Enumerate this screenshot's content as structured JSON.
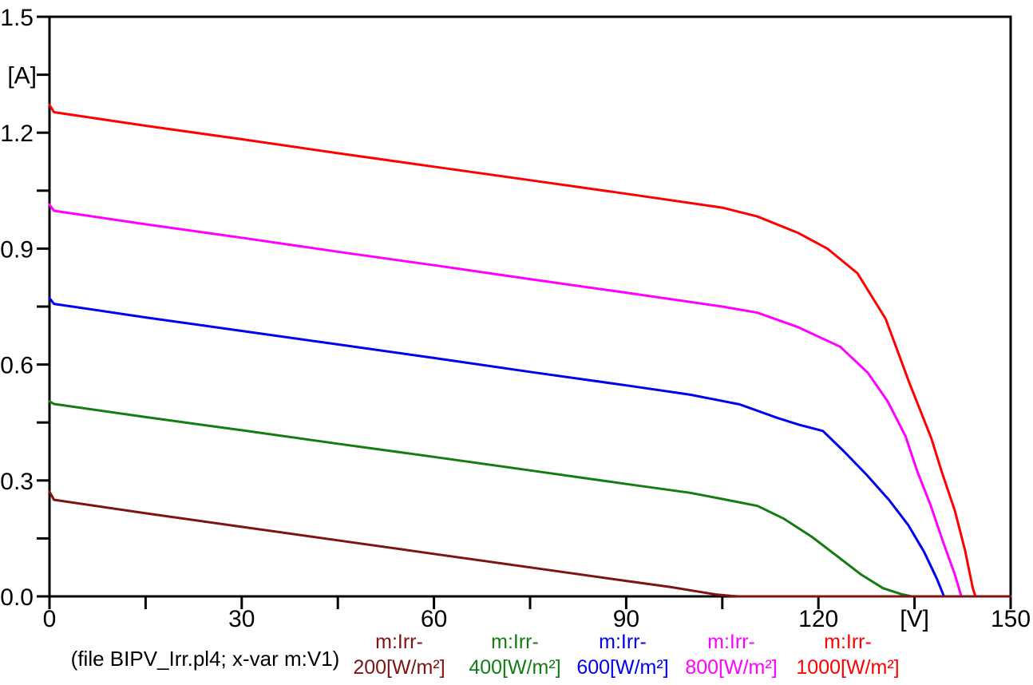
{
  "figure": {
    "background": "#ffffff",
    "caption": "(file BIPV_Irr.pl4; x-var m:V1)"
  },
  "chart_data": {
    "type": "line",
    "title": "",
    "xlabel": "[V]",
    "ylabel": "[A]",
    "xlim": [
      0,
      150
    ],
    "ylim": [
      0,
      1.5
    ],
    "x_major_ticks": [
      0,
      30,
      60,
      90,
      120,
      150
    ],
    "x_minor_step": 15,
    "x_unit_label_position": 135,
    "y_major_ticks": [
      0,
      0.3,
      0.6,
      0.9,
      1.2,
      1.5
    ],
    "y_minor_step": 0.15,
    "y_unit_label_position": 1.35,
    "grid": false,
    "legend_position": "bottom",
    "axis_color": "#000000",
    "series": [
      {
        "name": "m:Irr-200",
        "legend_line1": "m:Irr-",
        "legend_line2": "200[W/m²]",
        "irradiance_w_m2": 200,
        "color": "#7d1414",
        "points": [
          [
            0,
            0.271
          ],
          [
            0.7,
            0.25
          ],
          [
            15,
            0.215
          ],
          [
            30,
            0.18
          ],
          [
            45,
            0.145
          ],
          [
            60,
            0.11
          ],
          [
            75,
            0.075
          ],
          [
            90,
            0.04
          ],
          [
            97,
            0.024
          ],
          [
            101,
            0.013
          ],
          [
            104,
            0.005
          ],
          [
            106.5,
            0.001
          ],
          [
            107.5,
            0
          ],
          [
            150,
            0
          ]
        ]
      },
      {
        "name": "m:Irr-400",
        "legend_line1": "m:Irr-",
        "legend_line2": "400[W/m²]",
        "irradiance_w_m2": 400,
        "color": "#137d13",
        "points": [
          [
            0,
            0.505
          ],
          [
            0.7,
            0.498
          ],
          [
            15,
            0.464
          ],
          [
            30,
            0.43
          ],
          [
            45,
            0.395
          ],
          [
            60,
            0.361
          ],
          [
            75,
            0.326
          ],
          [
            90,
            0.291
          ],
          [
            100,
            0.268
          ],
          [
            105,
            0.252
          ],
          [
            110.5,
            0.234
          ],
          [
            114.6,
            0.201
          ],
          [
            118.9,
            0.155
          ],
          [
            123,
            0.103
          ],
          [
            126.7,
            0.056
          ],
          [
            130.1,
            0.021
          ],
          [
            132.9,
            0.006
          ],
          [
            134.5,
            0
          ],
          [
            150,
            0
          ]
        ]
      },
      {
        "name": "m:Irr-600",
        "legend_line1": "m:Irr-",
        "legend_line2": "600[W/m²]",
        "irradiance_w_m2": 600,
        "color": "#0000ee",
        "points": [
          [
            0,
            0.772
          ],
          [
            0.7,
            0.757
          ],
          [
            15,
            0.722
          ],
          [
            30,
            0.687
          ],
          [
            45,
            0.652
          ],
          [
            60,
            0.617
          ],
          [
            75,
            0.581
          ],
          [
            90,
            0.546
          ],
          [
            100,
            0.522
          ],
          [
            107.7,
            0.497
          ],
          [
            113.6,
            0.462
          ],
          [
            117,
            0.444
          ],
          [
            120.7,
            0.428
          ],
          [
            124,
            0.375
          ],
          [
            127.5,
            0.315
          ],
          [
            131,
            0.25
          ],
          [
            134,
            0.185
          ],
          [
            136.5,
            0.115
          ],
          [
            138.5,
            0.045
          ],
          [
            139.6,
            0
          ],
          [
            150,
            0
          ]
        ]
      },
      {
        "name": "m:Irr-800",
        "legend_line1": "m:Irr-",
        "legend_line2": "800[W/m²]",
        "irradiance_w_m2": 800,
        "color": "#ff00ff",
        "points": [
          [
            0,
            1.014
          ],
          [
            0.7,
            0.998
          ],
          [
            15,
            0.963
          ],
          [
            30,
            0.928
          ],
          [
            45,
            0.892
          ],
          [
            60,
            0.857
          ],
          [
            75,
            0.821
          ],
          [
            90,
            0.786
          ],
          [
            105,
            0.75
          ],
          [
            110.5,
            0.734
          ],
          [
            116.8,
            0.697
          ],
          [
            123.4,
            0.646
          ],
          [
            127.7,
            0.579
          ],
          [
            130.8,
            0.505
          ],
          [
            133.6,
            0.414
          ],
          [
            135.4,
            0.325
          ],
          [
            137.5,
            0.236
          ],
          [
            139.5,
            0.139
          ],
          [
            141.3,
            0.056
          ],
          [
            142.3,
            0
          ],
          [
            150,
            0
          ]
        ]
      },
      {
        "name": "m:Irr-1000",
        "legend_line1": "m:Irr-",
        "legend_line2": "1000[W/m²]",
        "irradiance_w_m2": 1000,
        "color": "#ff0000",
        "points": [
          [
            0,
            1.272
          ],
          [
            0.7,
            1.253
          ],
          [
            15,
            1.218
          ],
          [
            30,
            1.183
          ],
          [
            45,
            1.147
          ],
          [
            60,
            1.112
          ],
          [
            75,
            1.077
          ],
          [
            90,
            1.042
          ],
          [
            105,
            1.006
          ],
          [
            110.5,
            0.983
          ],
          [
            116.8,
            0.941
          ],
          [
            121.4,
            0.9
          ],
          [
            126.1,
            0.836
          ],
          [
            130.5,
            0.718
          ],
          [
            134.2,
            0.552
          ],
          [
            137.6,
            0.41
          ],
          [
            139.2,
            0.325
          ],
          [
            141.3,
            0.221
          ],
          [
            142.9,
            0.118
          ],
          [
            144.1,
            0.021
          ],
          [
            144.5,
            0
          ],
          [
            150,
            0
          ]
        ]
      }
    ]
  }
}
